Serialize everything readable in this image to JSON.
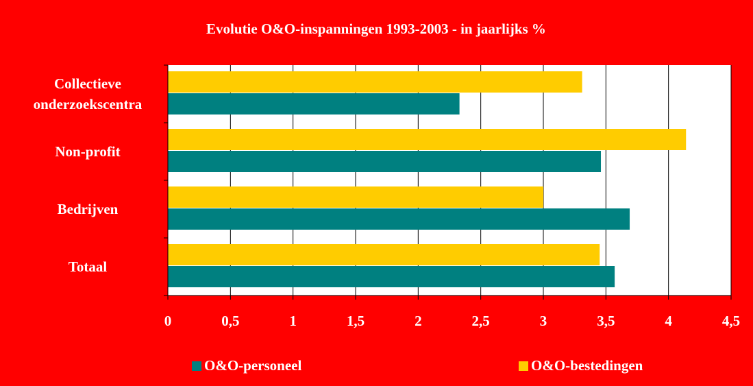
{
  "chart_data": {
    "type": "barh",
    "title": "Evolutie O&O-inspanningen 1993-2003 - in jaarlijks %",
    "categories": [
      "Collectieve onderzoekscentra",
      "Non-profit",
      "Bedrijven",
      "Totaal"
    ],
    "series": [
      {
        "name": "O&O-personeel",
        "color": "#008080",
        "values": [
          2.33,
          3.46,
          3.69,
          3.57
        ]
      },
      {
        "name": "O&O-bestedingen",
        "color": "#ffcc00",
        "values": [
          3.31,
          4.14,
          3.0,
          3.45
        ]
      }
    ],
    "xlim": [
      0,
      4.5
    ],
    "xticks": [
      0,
      {
        "value": 0.5,
        "label": "0,5"
      },
      1,
      {
        "value": 1.5,
        "label": "1,5"
      },
      2,
      {
        "value": 2.5,
        "label": "2,5"
      },
      3,
      {
        "value": 3.5,
        "label": "3,5"
      },
      4,
      {
        "value": 4.5,
        "label": "4,5"
      }
    ],
    "grid": true,
    "legend": "bottom"
  }
}
